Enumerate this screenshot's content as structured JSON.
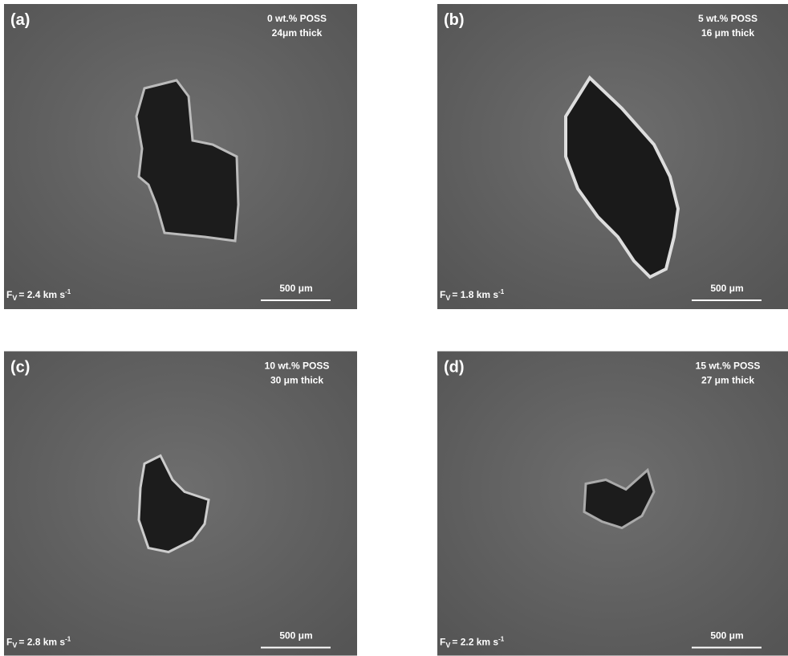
{
  "panels": [
    {
      "label": "(a)",
      "composition": "0 wt.% POSS",
      "thickness": "24μm thick",
      "velocity": {
        "symbol": "F",
        "subscript": "V",
        "text": "= 2.4 km s",
        "superscript": "-1"
      },
      "scale": "500 μm"
    },
    {
      "label": "(b)",
      "composition": "5 wt.% POSS",
      "thickness": "16 μm thick",
      "velocity": {
        "symbol": "F",
        "subscript": "V",
        "text": "= 1.8 km s",
        "superscript": "-1"
      },
      "scale": "500 μm"
    },
    {
      "label": "(c)",
      "composition": "10 wt.% POSS",
      "thickness": "30 μm thick",
      "velocity": {
        "symbol": "F",
        "subscript": "V",
        "text": "= 2.8 km s",
        "superscript": "-1"
      },
      "scale": "500 μm"
    },
    {
      "label": "(d)",
      "composition": "15 wt.% POSS",
      "thickness": "27 μm thick",
      "velocity": {
        "symbol": "F",
        "subscript": "V",
        "text": "= 2.2 km s",
        "superscript": "-1"
      },
      "scale": "500 μm"
    }
  ]
}
